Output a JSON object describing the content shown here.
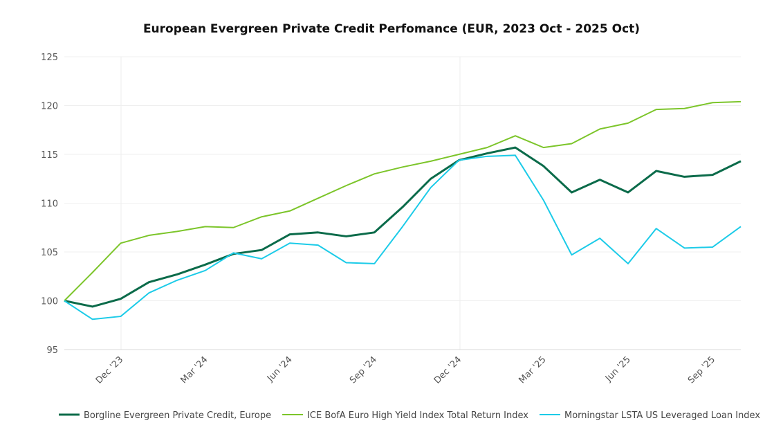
{
  "chart_data": {
    "type": "line",
    "title": "European Evergreen Private Credit Perfomance (EUR, 2023 Oct - 2025 Oct)",
    "categories": [
      null,
      null,
      "Dec '23",
      null,
      null,
      "Mar '24",
      null,
      null,
      "Jun '24",
      null,
      null,
      "Sep '24",
      null,
      null,
      "Dec '24",
      null,
      null,
      "Mar '25",
      null,
      null,
      "Jun '25",
      null,
      null,
      "Sep '25",
      null
    ],
    "series": [
      {
        "name": "Borgline Evergreen Private Credit, Europe",
        "color": "#0b6b4a",
        "values": [
          100,
          99.4,
          100.2,
          101.9,
          102.7,
          103.7,
          104.8,
          105.2,
          106.8,
          107.0,
          106.6,
          107.0,
          109.6,
          112.5,
          114.4,
          115.1,
          115.7,
          113.8,
          111.1,
          112.4,
          111.1,
          113.3,
          112.7,
          112.9,
          114.3
        ]
      },
      {
        "name": "ICE BofA Euro High Yield Index Total Return Index",
        "color": "#7cc52a",
        "values": [
          100,
          102.9,
          105.9,
          106.7,
          107.1,
          107.6,
          107.5,
          108.6,
          109.2,
          110.5,
          111.8,
          113.0,
          113.7,
          114.3,
          115.0,
          115.7,
          116.9,
          115.7,
          116.1,
          117.6,
          118.2,
          119.6,
          119.7,
          120.3,
          120.4
        ]
      },
      {
        "name": "Morningstar LSTA US Leveraged Loan Index",
        "color": "#1ccbe8",
        "values": [
          100,
          98.1,
          98.4,
          100.8,
          102.1,
          103.1,
          104.9,
          104.3,
          105.9,
          105.7,
          103.9,
          103.8,
          107.6,
          111.6,
          114.4,
          114.8,
          114.9,
          110.3,
          104.7,
          106.4,
          103.8,
          107.4,
          105.4,
          105.5,
          107.6
        ]
      }
    ],
    "ylim": [
      95,
      125
    ],
    "yticks": [
      95,
      100,
      105,
      110,
      115,
      120,
      125
    ],
    "grid": true,
    "legend": "bottom"
  }
}
